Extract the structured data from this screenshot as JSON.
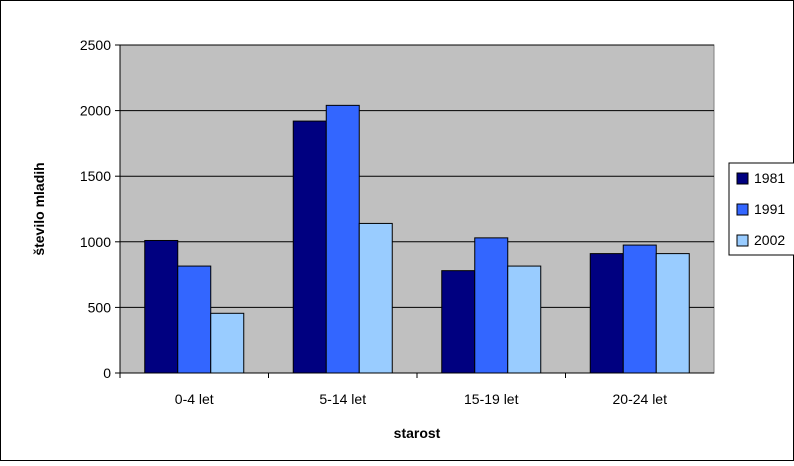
{
  "chart_data": {
    "type": "bar",
    "categories": [
      "0-4 let",
      "5-14 let",
      "15-19 let",
      "20-24 let"
    ],
    "series": [
      {
        "name": "1981",
        "color": "#000080",
        "values": [
          1010,
          1920,
          780,
          910
        ]
      },
      {
        "name": "1991",
        "color": "#3366FF",
        "values": [
          815,
          2040,
          1030,
          975
        ]
      },
      {
        "name": "2002",
        "color": "#99CCFF",
        "values": [
          455,
          1140,
          815,
          910
        ]
      }
    ],
    "xlabel": "starost",
    "ylabel": "število mladih",
    "ylim": [
      0,
      2500
    ],
    "yticks": [
      0,
      500,
      1000,
      1500,
      2000,
      2500
    ],
    "grid": true,
    "plot_background": "#C0C0C0",
    "legend": "right"
  }
}
